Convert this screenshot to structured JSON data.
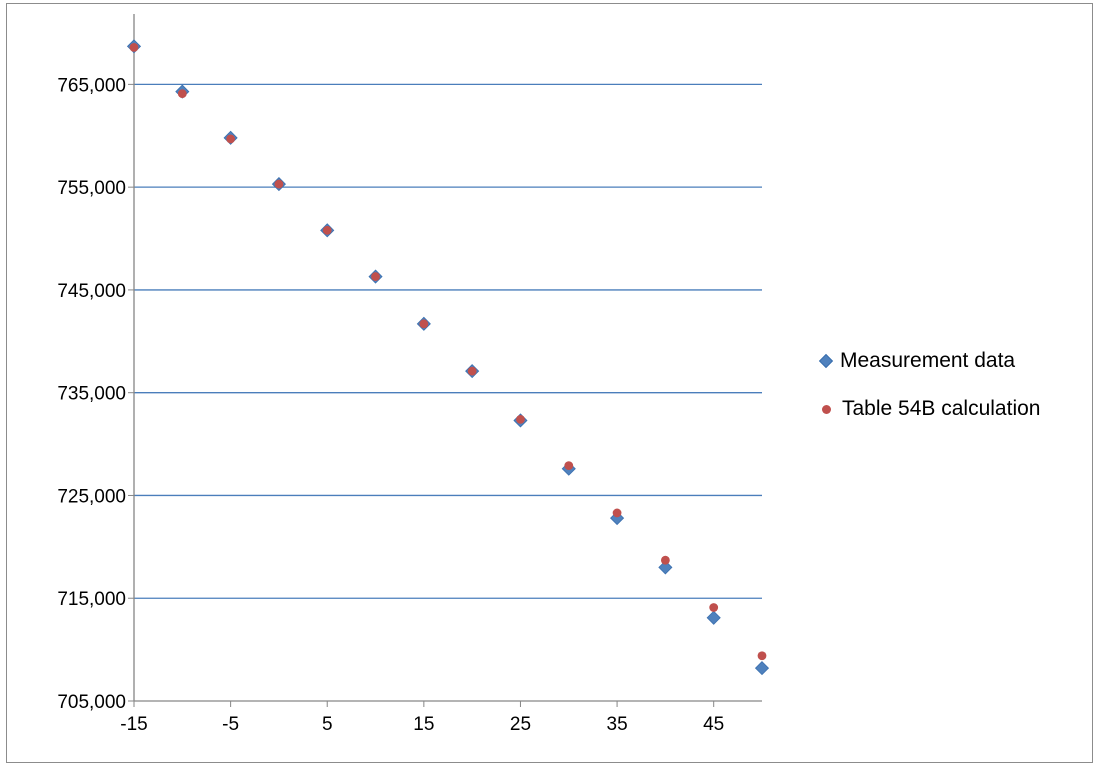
{
  "chart_data": {
    "type": "scatter",
    "title": "",
    "xlabel": "",
    "ylabel": "",
    "xlim": [
      -15,
      50
    ],
    "ylim": [
      705000,
      770000
    ],
    "x_ticks": [
      "-15",
      "-5",
      "5",
      "15",
      "25",
      "35",
      "45"
    ],
    "y_ticks": [
      "705,000",
      "715,000",
      "725,000",
      "735,000",
      "745,000",
      "755,000",
      "765,000"
    ],
    "grid": "horizontal",
    "legend_position": "right",
    "series": [
      {
        "name": "Measurement data",
        "marker": "diamond",
        "color": "#4f81bd",
        "x": [
          -15,
          -10,
          -5,
          0,
          5,
          10,
          15,
          20,
          25,
          30,
          35,
          40,
          45,
          50
        ],
        "y": [
          768700,
          764300,
          759800,
          755300,
          750800,
          746300,
          741700,
          737100,
          732300,
          727600,
          722800,
          718000,
          713100,
          708200
        ]
      },
      {
        "name": "Table 54B calculation",
        "marker": "circle",
        "color": "#c0504d",
        "x": [
          -15,
          -10,
          -5,
          0,
          5,
          10,
          15,
          20,
          25,
          30,
          35,
          40,
          45,
          50
        ],
        "y": [
          768600,
          764100,
          759700,
          755300,
          750800,
          746300,
          741700,
          737100,
          732400,
          727900,
          723300,
          718700,
          714100,
          709400
        ]
      }
    ]
  },
  "legend": {
    "items": [
      {
        "label": "Measurement data"
      },
      {
        "label": "Table 54B calculation"
      }
    ]
  }
}
